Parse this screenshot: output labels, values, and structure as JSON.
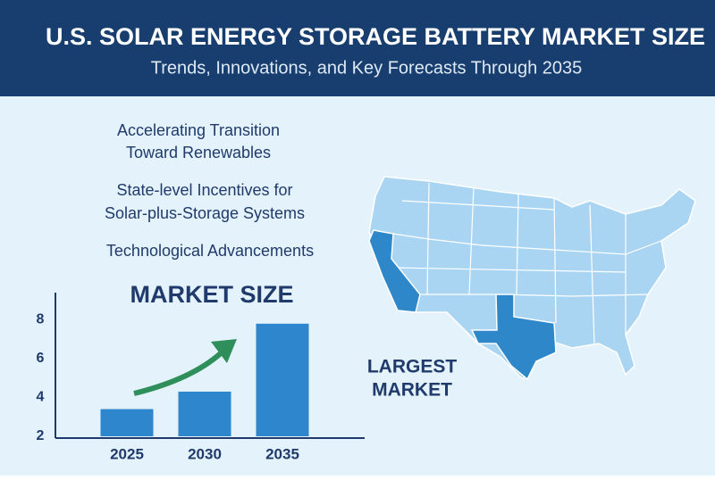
{
  "header": {
    "title": "U.S. SOLAR ENERGY STORAGE BATTERY MARKET SIZE",
    "subtitle": "Trends, Innovations, and Key Forecasts Through 2035"
  },
  "bullets": [
    {
      "lines": [
        "Accelerating Transition",
        "Toward Renewables"
      ]
    },
    {
      "lines": [
        "State-level Incentives for",
        "Solar-plus-Storage Systems"
      ]
    },
    {
      "lines": [
        "Technological Advancements"
      ]
    }
  ],
  "chart_data": {
    "type": "bar",
    "title": "MARKET SIZE",
    "categories": [
      "2025",
      "2030",
      "2035"
    ],
    "values": [
      3.4,
      4.3,
      7.8
    ],
    "color": "#2e86cc",
    "ylim": [
      2,
      9.4
    ],
    "yticks": [
      2,
      4,
      6,
      8
    ],
    "grid": false
  },
  "map": {
    "label": [
      "LARGEST",
      "MARKET"
    ]
  }
}
